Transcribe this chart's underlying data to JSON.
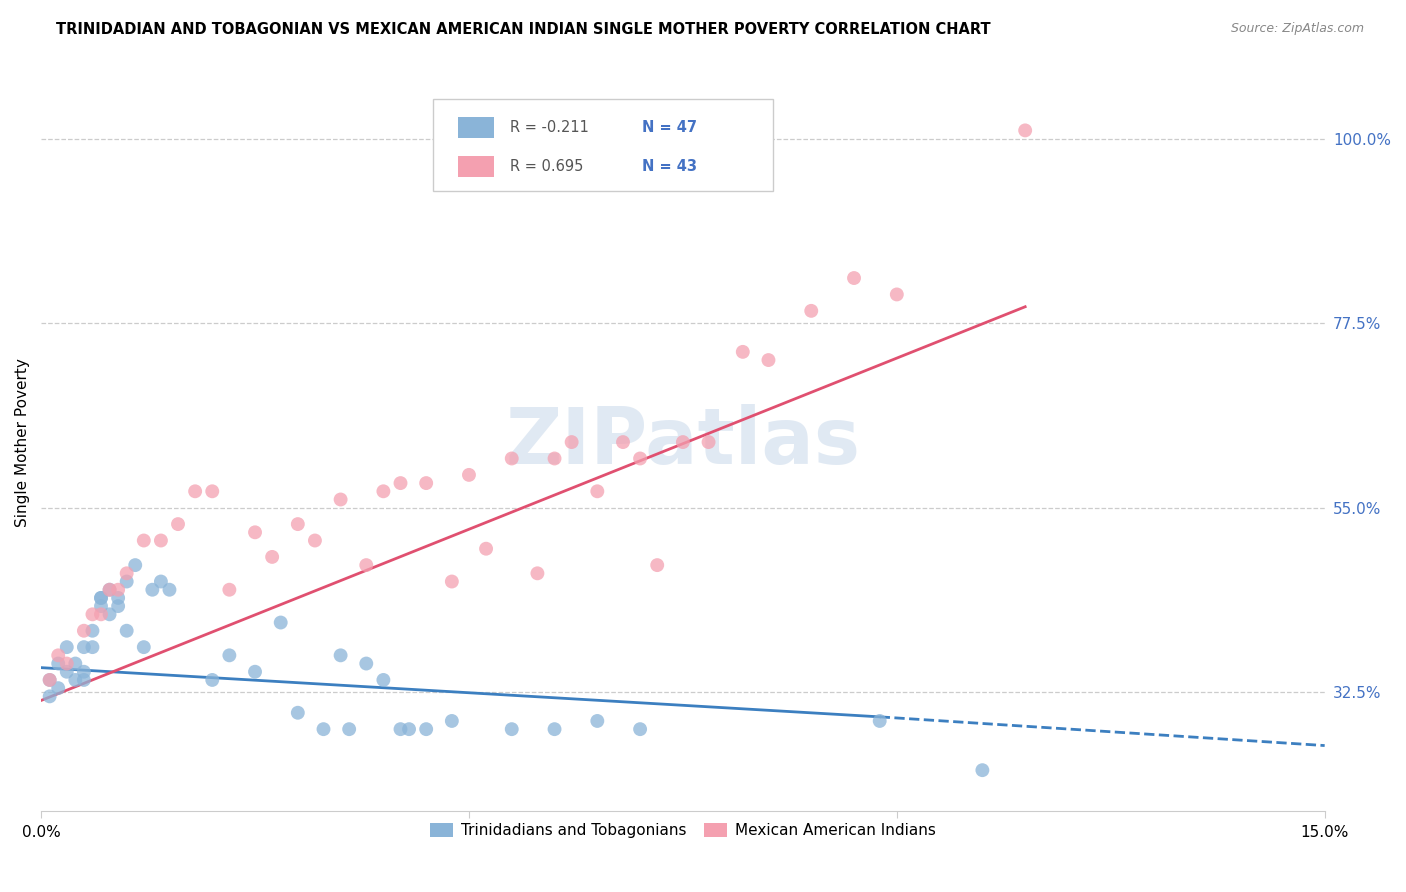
{
  "title": "TRINIDADIAN AND TOBAGONIAN VS MEXICAN AMERICAN INDIAN SINGLE MOTHER POVERTY CORRELATION CHART",
  "source": "Source: ZipAtlas.com",
  "ylabel": "Single Mother Poverty",
  "r_blue": -0.211,
  "n_blue": 47,
  "r_pink": 0.695,
  "n_pink": 43,
  "xlim": [
    0.0,
    0.15
  ],
  "ylim": [
    0.18,
    1.08
  ],
  "yticks": [
    0.325,
    0.55,
    0.775,
    1.0
  ],
  "ytick_labels": [
    "32.5%",
    "55.0%",
    "77.5%",
    "100.0%"
  ],
  "xticks": [
    0.0,
    0.05,
    0.1,
    0.15
  ],
  "xtick_labels": [
    "0.0%",
    "",
    "",
    "15.0%"
  ],
  "color_blue": "#8ab4d8",
  "color_pink": "#f4a0b0",
  "line_blue": "#3c7fc0",
  "line_pink": "#e05070",
  "watermark": "ZIPatlas",
  "legend_entries": [
    "Trinidadians and Tobagonians",
    "Mexican American Indians"
  ],
  "blue_x": [
    0.001,
    0.001,
    0.002,
    0.002,
    0.003,
    0.003,
    0.004,
    0.004,
    0.005,
    0.005,
    0.005,
    0.006,
    0.006,
    0.007,
    0.007,
    0.007,
    0.008,
    0.008,
    0.009,
    0.009,
    0.01,
    0.01,
    0.011,
    0.012,
    0.013,
    0.014,
    0.015,
    0.02,
    0.022,
    0.025,
    0.028,
    0.03,
    0.033,
    0.035,
    0.036,
    0.038,
    0.04,
    0.042,
    0.043,
    0.045,
    0.048,
    0.055,
    0.06,
    0.065,
    0.07,
    0.098,
    0.11
  ],
  "blue_y": [
    0.34,
    0.32,
    0.36,
    0.33,
    0.35,
    0.38,
    0.34,
    0.36,
    0.35,
    0.34,
    0.38,
    0.4,
    0.38,
    0.43,
    0.44,
    0.44,
    0.42,
    0.45,
    0.44,
    0.43,
    0.4,
    0.46,
    0.48,
    0.38,
    0.45,
    0.46,
    0.45,
    0.34,
    0.37,
    0.35,
    0.41,
    0.3,
    0.28,
    0.37,
    0.28,
    0.36,
    0.34,
    0.28,
    0.28,
    0.28,
    0.29,
    0.28,
    0.28,
    0.29,
    0.28,
    0.29,
    0.23
  ],
  "pink_x": [
    0.001,
    0.002,
    0.003,
    0.005,
    0.006,
    0.007,
    0.008,
    0.009,
    0.01,
    0.012,
    0.014,
    0.016,
    0.018,
    0.02,
    0.022,
    0.025,
    0.027,
    0.03,
    0.032,
    0.035,
    0.038,
    0.04,
    0.042,
    0.045,
    0.048,
    0.05,
    0.052,
    0.055,
    0.058,
    0.06,
    0.062,
    0.065,
    0.068,
    0.07,
    0.072,
    0.075,
    0.078,
    0.082,
    0.085,
    0.09,
    0.095,
    0.1,
    0.115
  ],
  "pink_y": [
    0.34,
    0.37,
    0.36,
    0.4,
    0.42,
    0.42,
    0.45,
    0.45,
    0.47,
    0.51,
    0.51,
    0.53,
    0.57,
    0.57,
    0.45,
    0.52,
    0.49,
    0.53,
    0.51,
    0.56,
    0.48,
    0.57,
    0.58,
    0.58,
    0.46,
    0.59,
    0.5,
    0.61,
    0.47,
    0.61,
    0.63,
    0.57,
    0.63,
    0.61,
    0.48,
    0.63,
    0.63,
    0.74,
    0.73,
    0.79,
    0.83,
    0.81,
    1.01
  ],
  "blue_line_x0": 0.0,
  "blue_line_y0": 0.355,
  "blue_line_x1": 0.098,
  "blue_line_y1": 0.295,
  "blue_line_xdash": 0.15,
  "blue_line_ydash": 0.26,
  "pink_line_x0": 0.0,
  "pink_line_y0": 0.315,
  "pink_line_x1": 0.115,
  "pink_line_y1": 0.795
}
